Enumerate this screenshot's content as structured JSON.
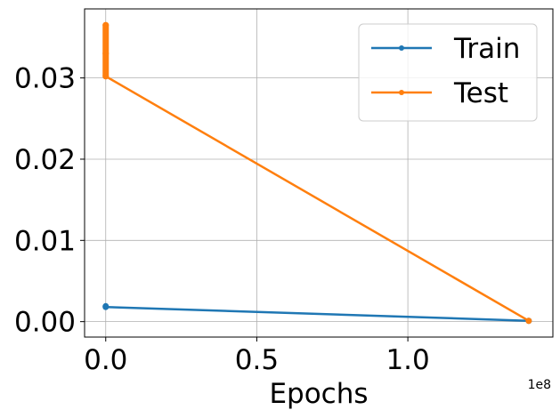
{
  "chart_data": {
    "type": "line",
    "xlabel": "Epochs",
    "ylabel": "",
    "x_offset_label": "1e8",
    "xlim": [
      -0.07,
      1.48
    ],
    "ylim": [
      -0.0019,
      0.0385
    ],
    "x_ticks": [
      0.0,
      0.5,
      1.0
    ],
    "x_tick_labels": [
      "0.0",
      "0.5",
      "1.0"
    ],
    "y_ticks": [
      0.0,
      0.01,
      0.02,
      0.03
    ],
    "y_tick_labels": [
      "0.00",
      "0.01",
      "0.02",
      "0.03"
    ],
    "grid": true,
    "legend_position": "top-right",
    "series": [
      {
        "name": "Train",
        "color": "#1f77b4",
        "x": [
          0,
          0,
          1.4
        ],
        "y": [
          0.0019,
          0.0018,
          0.0001
        ]
      },
      {
        "name": "Test",
        "color": "#ff7f0e",
        "x": [
          0,
          0,
          0,
          1.4
        ],
        "y": [
          0.0365,
          0.033,
          0.0302,
          0.0001
        ]
      }
    ]
  }
}
